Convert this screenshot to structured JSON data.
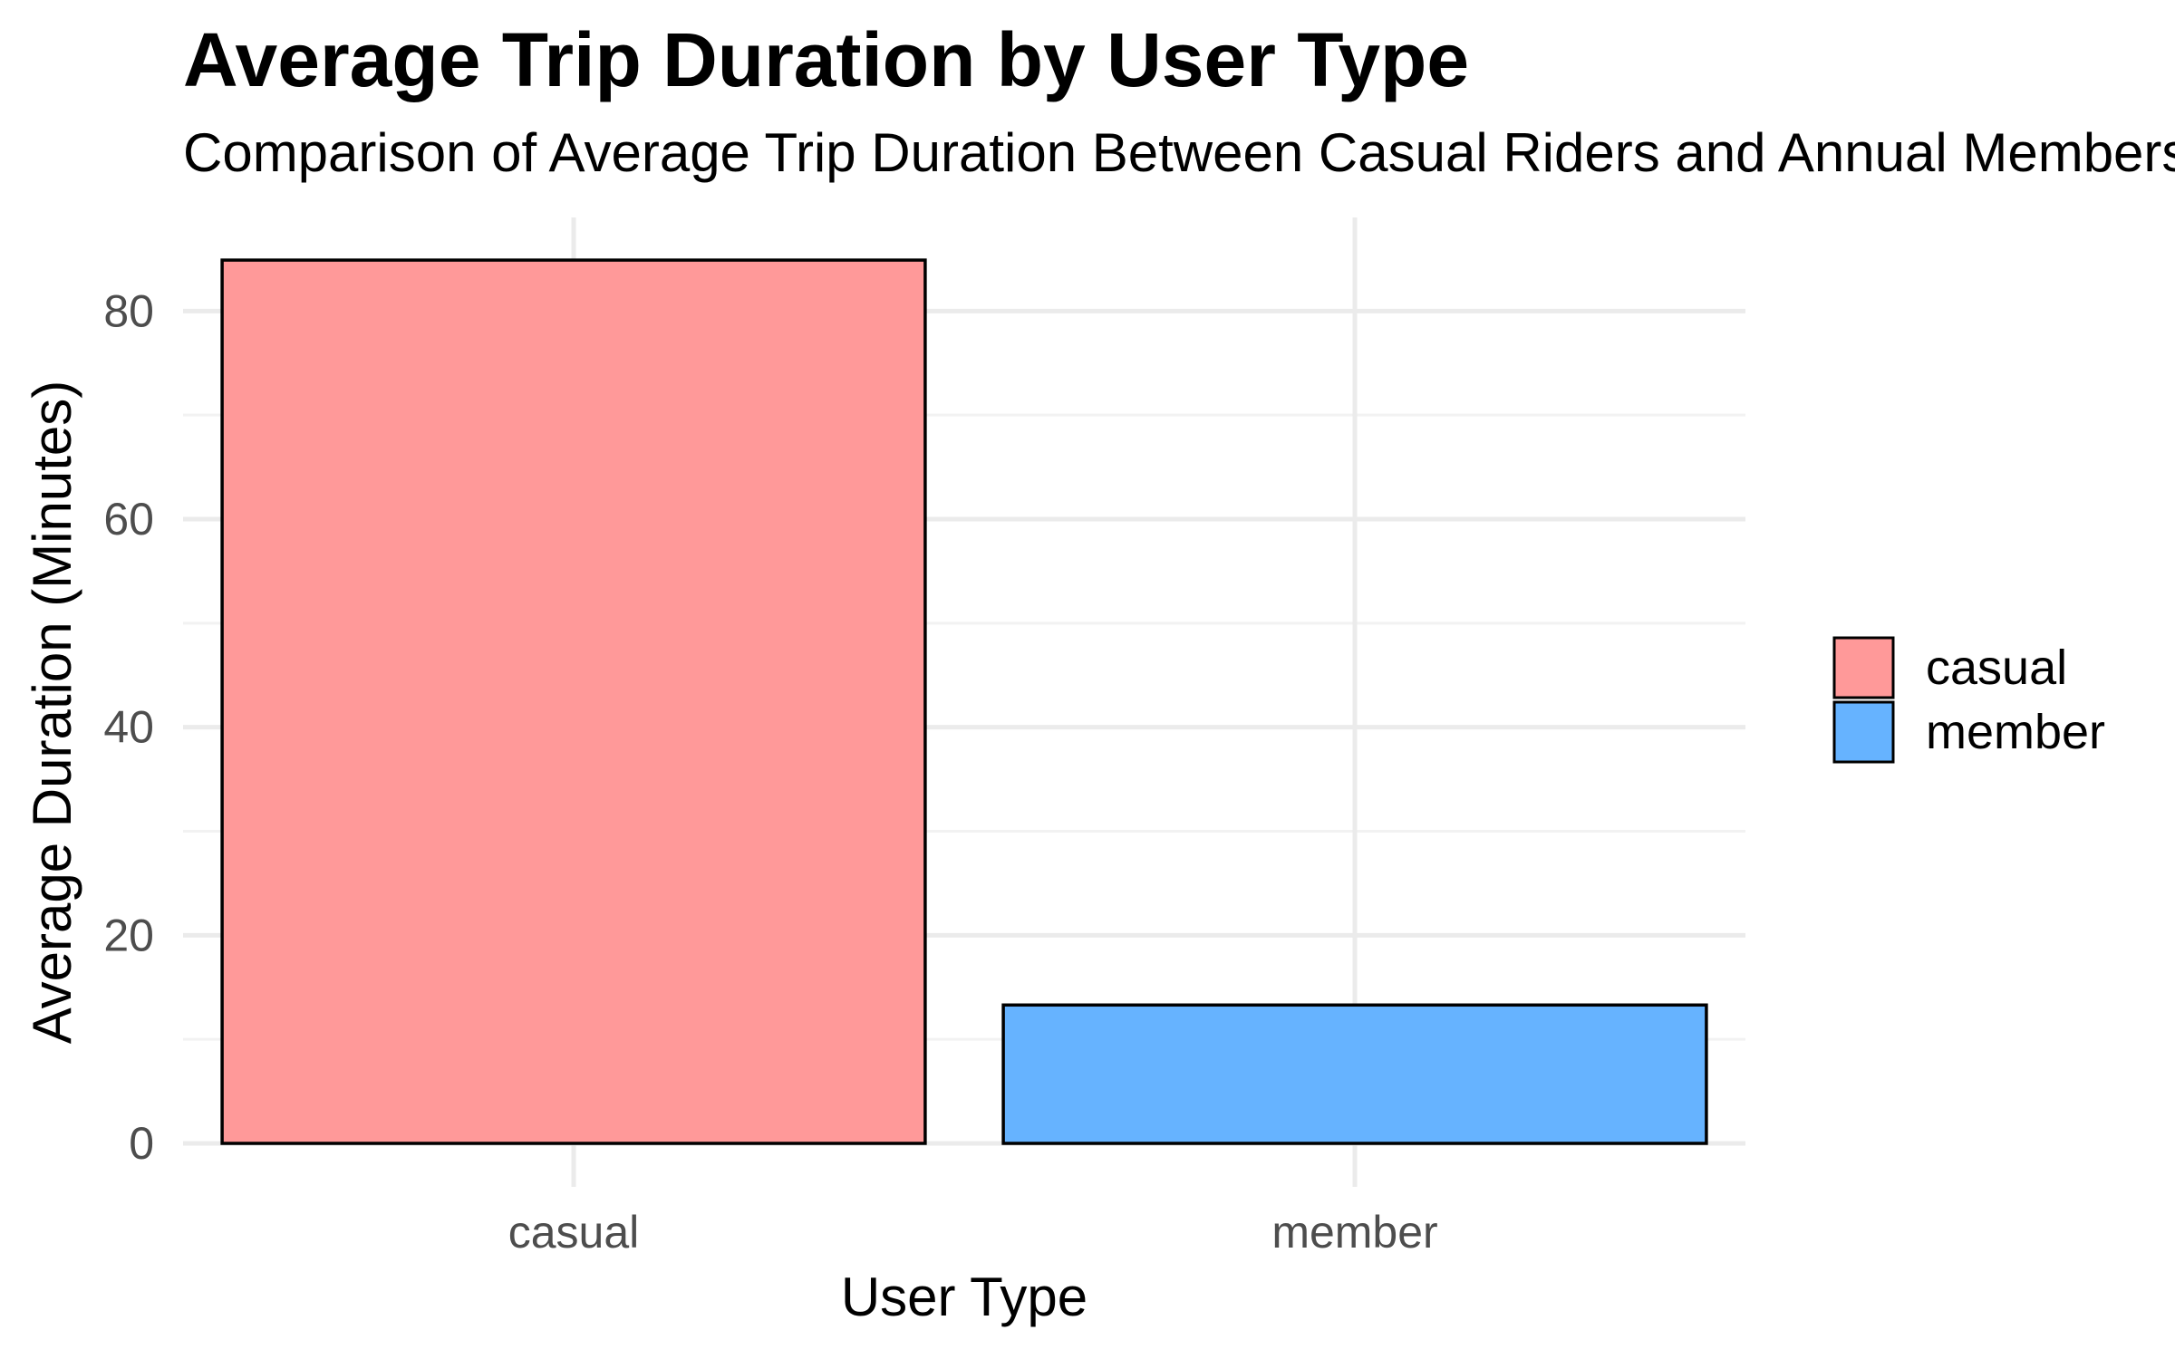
{
  "chart_data": {
    "type": "bar",
    "title": "Average Trip Duration by User Type",
    "subtitle": "Comparison of Average Trip Duration Between Casual Riders and Annual Members",
    "xlabel": "User Type",
    "ylabel": "Average Duration (Minutes)",
    "categories": [
      "casual",
      "member"
    ],
    "values": [
      84.9,
      13.3
    ],
    "ylim": [
      0,
      89
    ],
    "yticks": [
      0,
      20,
      40,
      60,
      80
    ],
    "ytick_labels": [
      "0",
      "20",
      "40",
      "60",
      "80"
    ],
    "grid": true,
    "legend": {
      "position": "right",
      "entries": [
        "casual",
        "member"
      ]
    },
    "colors": {
      "casual": "#ff9999",
      "member": "#66b3ff",
      "bar_outline": "#000000",
      "grid_major": "#ebebeb",
      "grid_minor": "#f2f2f2"
    }
  }
}
